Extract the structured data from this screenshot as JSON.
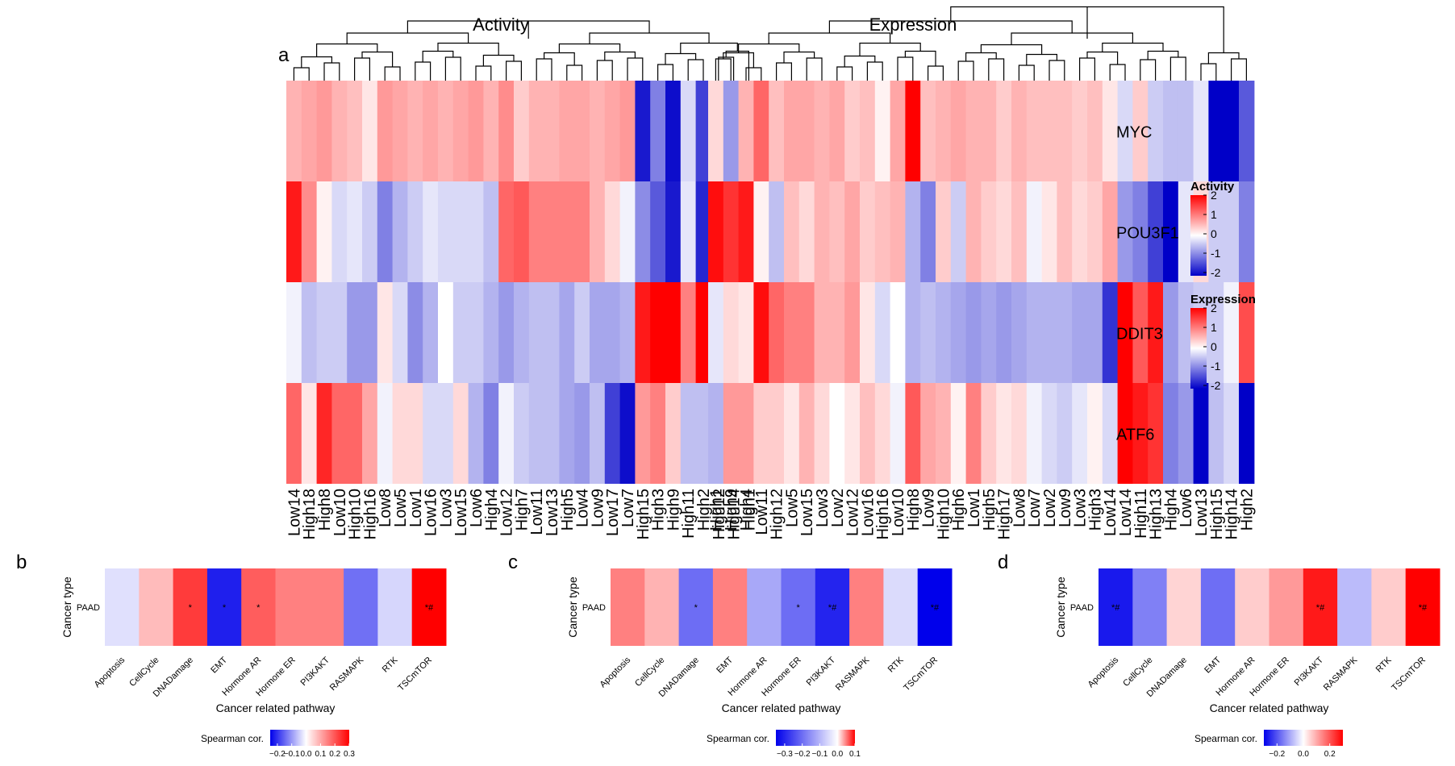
{
  "figure": {
    "panel_labels": [
      "a",
      "b",
      "c",
      "d"
    ]
  },
  "chart_data": [
    {
      "panel": "a",
      "type": "heatmap",
      "titles": {
        "activity": "Activity",
        "expression": "Expression"
      },
      "rows": [
        "MYC",
        "POU3F1",
        "DDIT3",
        "ATF6"
      ],
      "activity": {
        "columns": [
          "Low14",
          "High18",
          "High8",
          "Low10",
          "High10",
          "High16",
          "Low8",
          "Low5",
          "Low1",
          "Low16",
          "Low3",
          "Low15",
          "Low6",
          "High4",
          "Low12",
          "High7",
          "Low11",
          "Low13",
          "High5",
          "Low4",
          "Low9",
          "Low17",
          "Low7",
          "High15",
          "High3",
          "High9",
          "High11",
          "High2",
          "High12",
          "High14",
          "High1"
        ],
        "values": [
          [
            0.6,
            0.7,
            0.8,
            0.6,
            0.5,
            0.2,
            0.8,
            0.7,
            0.6,
            0.7,
            0.6,
            0.7,
            0.8,
            0.6,
            0.9,
            0.4,
            0.6,
            0.6,
            0.7,
            0.7,
            0.6,
            0.7,
            0.8,
            -1.8,
            -1.0,
            -1.9,
            -0.3,
            -1.5,
            -1.0,
            -2.0,
            -2.0
          ],
          [
            1.8,
            0.9,
            0.1,
            -0.3,
            -0.2,
            -0.4,
            -1.0,
            -0.6,
            -0.4,
            -0.2,
            -0.3,
            -0.3,
            -0.3,
            -0.5,
            1.2,
            1.3,
            1.0,
            1.0,
            1.0,
            1.0,
            0.6,
            0.3,
            -0.1,
            -0.9,
            -1.3,
            -1.8,
            -0.2,
            -1.7,
            -0.3,
            -0.4,
            -0.2
          ],
          [
            -0.1,
            -0.5,
            -0.4,
            -0.4,
            -0.8,
            -0.8,
            0.2,
            -0.3,
            -0.9,
            -0.6,
            0.0,
            -0.4,
            -0.4,
            -0.6,
            -0.8,
            -0.6,
            -0.5,
            -0.5,
            -0.7,
            -0.4,
            -0.7,
            -0.7,
            -0.6,
            1.8,
            2.0,
            2.0,
            1.0,
            2.0,
            1.2,
            1.1,
            0.8
          ],
          [
            1.2,
            0.2,
            1.7,
            1.2,
            1.2,
            0.7,
            -0.1,
            0.3,
            0.3,
            -0.3,
            -0.3,
            0.3,
            -0.6,
            -1.0,
            -0.1,
            -0.4,
            -0.5,
            -0.5,
            -0.7,
            -0.8,
            -0.5,
            -1.5,
            -1.9,
            0.8,
            1.0,
            0.4,
            -0.5,
            -0.5,
            -0.7,
            -0.8,
            -1.4
          ]
        ]
      },
      "expression": {
        "columns": [
          "High1",
          "High9",
          "High4",
          "Low11",
          "High12",
          "Low5",
          "Low15",
          "Low3",
          "Low2",
          "Low12",
          "Low16",
          "High16",
          "Low10",
          "High8",
          "Low9",
          "High10",
          "High6",
          "Low1",
          "High5",
          "High17",
          "Low8",
          "Low7",
          "Low2",
          "Low9",
          "Low3",
          "High3",
          "Low14",
          "Low14",
          "High11",
          "High13",
          "High4",
          "Low6",
          "Low13",
          "High15",
          "High14",
          "High2"
        ],
        "values": [
          [
            0.3,
            -0.8,
            0.6,
            1.2,
            0.5,
            0.7,
            0.7,
            0.6,
            0.7,
            0.4,
            0.5,
            0.1,
            0.7,
            2.0,
            0.5,
            0.6,
            0.7,
            0.6,
            0.6,
            0.4,
            0.6,
            0.5,
            0.5,
            0.5,
            0.4,
            0.5,
            0.2,
            -0.3,
            0.4,
            -0.4,
            -0.5,
            -0.5,
            -0.2,
            -2.0,
            -2.0,
            -1.3
          ],
          [
            1.9,
            1.6,
            1.8,
            0.1,
            -0.5,
            0.5,
            0.3,
            0.6,
            0.5,
            0.7,
            0.4,
            0.5,
            0.6,
            -0.6,
            -1.0,
            0.4,
            -0.4,
            0.6,
            0.4,
            0.3,
            0.5,
            -0.1,
            0.2,
            0.5,
            0.3,
            0.4,
            0.7,
            -0.8,
            -1.0,
            -1.5,
            -2.0,
            -0.2,
            0.3,
            -0.4,
            -0.4,
            -1.0
          ],
          [
            -0.2,
            0.3,
            0.2,
            1.9,
            1.2,
            1.0,
            1.0,
            0.6,
            0.6,
            0.8,
            0.2,
            -0.3,
            0.0,
            -0.6,
            -0.5,
            -0.6,
            -0.7,
            -0.8,
            -0.7,
            -0.8,
            -0.7,
            -0.6,
            -0.6,
            -0.6,
            -0.7,
            -0.7,
            -1.6,
            2.0,
            1.3,
            1.8,
            -0.8,
            -0.5,
            -0.4,
            -0.4,
            -0.1,
            1.4
          ],
          [
            -0.6,
            0.8,
            0.8,
            0.4,
            0.4,
            0.2,
            0.6,
            0.3,
            0.0,
            0.2,
            0.5,
            0.3,
            -0.1,
            1.3,
            0.7,
            0.6,
            0.1,
            1.0,
            0.4,
            0.2,
            0.3,
            -0.1,
            -0.3,
            -0.4,
            -0.2,
            0.1,
            -0.3,
            2.0,
            1.8,
            1.6,
            -1.0,
            -0.8,
            -2.0,
            -0.5,
            -0.3,
            -2.0
          ]
        ]
      },
      "legends": [
        {
          "title": "Activity",
          "ticks": [
            "2",
            "1",
            "0",
            "-1",
            "-2"
          ]
        },
        {
          "title": "Expression",
          "ticks": [
            "2",
            "1",
            "0",
            "-1",
            "-2"
          ]
        }
      ]
    },
    {
      "panel": "b",
      "type": "heatmap",
      "ylabel": "Cancer type",
      "xlabel": "Cancer related pathway",
      "row": "PAAD",
      "categories": [
        "Apoptosis",
        "CellCycle",
        "DNADamage",
        "EMT",
        "Hormone AR",
        "Hormone ER",
        "PI3KAKT",
        "RASMAPK",
        "RTK",
        "TSCmTOR"
      ],
      "values": [
        -0.03,
        0.08,
        0.23,
        -0.22,
        0.19,
        0.15,
        0.15,
        -0.14,
        -0.04,
        0.3
      ],
      "marks": [
        "",
        "",
        "*",
        "*",
        "*",
        "",
        "",
        "",
        "",
        "*#"
      ],
      "legend": {
        "title": "Spearman cor.",
        "range": [
          -0.25,
          0.3
        ],
        "ticks": [
          "−0.2",
          "−0.1",
          "0.0",
          "0.1",
          "0.2",
          "0.3"
        ]
      }
    },
    {
      "panel": "c",
      "type": "heatmap",
      "ylabel": "Cancer type",
      "xlabel": "Cancer related pathway",
      "row": "PAAD",
      "categories": [
        "Apoptosis",
        "CellCycle",
        "DNADamage",
        "EMT",
        "Hormone AR",
        "Hormone ER",
        "PI3KAKT",
        "RASMAPK",
        "RTK",
        "TSCmTOR"
      ],
      "values": [
        0.05,
        0.03,
        -0.2,
        0.05,
        -0.12,
        -0.2,
        -0.3,
        0.05,
        -0.05,
        -0.35
      ],
      "marks": [
        "",
        "",
        "*",
        "",
        "",
        "*",
        "*#",
        "",
        "",
        "*#"
      ],
      "legend": {
        "title": "Spearman cor.",
        "range": [
          -0.35,
          0.1
        ],
        "ticks": [
          "−0.3",
          "−0.2",
          "−0.1",
          "0.0",
          "0.1"
        ]
      }
    },
    {
      "panel": "d",
      "type": "heatmap",
      "ylabel": "Cancer type",
      "xlabel": "Cancer related pathway",
      "row": "PAAD",
      "categories": [
        "Apoptosis",
        "CellCycle",
        "DNADamage",
        "EMT",
        "Hormone AR",
        "Hormone ER",
        "PI3KAKT",
        "RASMAPK",
        "RTK",
        "TSCmTOR"
      ],
      "values": [
        -0.27,
        -0.15,
        0.05,
        -0.17,
        0.06,
        0.12,
        0.27,
        -0.08,
        0.06,
        0.3
      ],
      "marks": [
        "*#",
        "",
        "",
        "",
        "",
        "",
        "*#",
        "",
        "",
        "*#"
      ],
      "legend": {
        "title": "Spearman cor.",
        "range": [
          -0.3,
          0.3
        ],
        "ticks": [
          "−0.2",
          "0.0",
          "0.2"
        ]
      }
    }
  ]
}
